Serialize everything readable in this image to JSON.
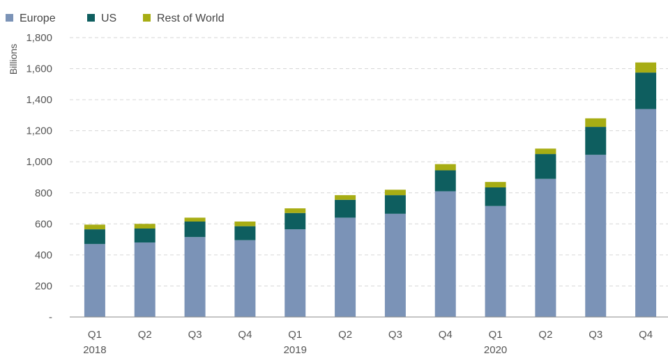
{
  "chart_data": {
    "type": "bar",
    "stacked": true,
    "title": "",
    "xlabel": "",
    "ylabel": "Billions",
    "ylim": [
      0,
      1800
    ],
    "yticks": [
      0,
      200,
      400,
      600,
      800,
      1000,
      1200,
      1400,
      1600,
      1800
    ],
    "ytick_labels": [
      "-",
      "200",
      "400",
      "600",
      "800",
      "1,000",
      "1,200",
      "1,400",
      "1,600",
      "1,800"
    ],
    "grid": true,
    "legend_position": "top-left",
    "categories": [
      "Q1",
      "Q2",
      "Q3",
      "Q4",
      "Q1",
      "Q2",
      "Q3",
      "Q4",
      "Q1",
      "Q2",
      "Q3",
      "Q4"
    ],
    "year_labels": [
      {
        "label": "2018",
        "category_index": 0
      },
      {
        "label": "2019",
        "category_index": 4
      },
      {
        "label": "2020",
        "category_index": 8
      }
    ],
    "series": [
      {
        "name": "Europe",
        "color": "#7b93b7",
        "values": [
          470,
          480,
          515,
          495,
          565,
          640,
          665,
          810,
          715,
          890,
          1045,
          1340
        ]
      },
      {
        "name": "US",
        "color": "#0e5e5f",
        "values": [
          95,
          90,
          100,
          90,
          105,
          115,
          120,
          135,
          120,
          160,
          180,
          235
        ]
      },
      {
        "name": "Rest of World",
        "color": "#a7ad14",
        "values": [
          30,
          30,
          25,
          30,
          30,
          30,
          35,
          40,
          35,
          35,
          55,
          65
        ]
      }
    ]
  }
}
